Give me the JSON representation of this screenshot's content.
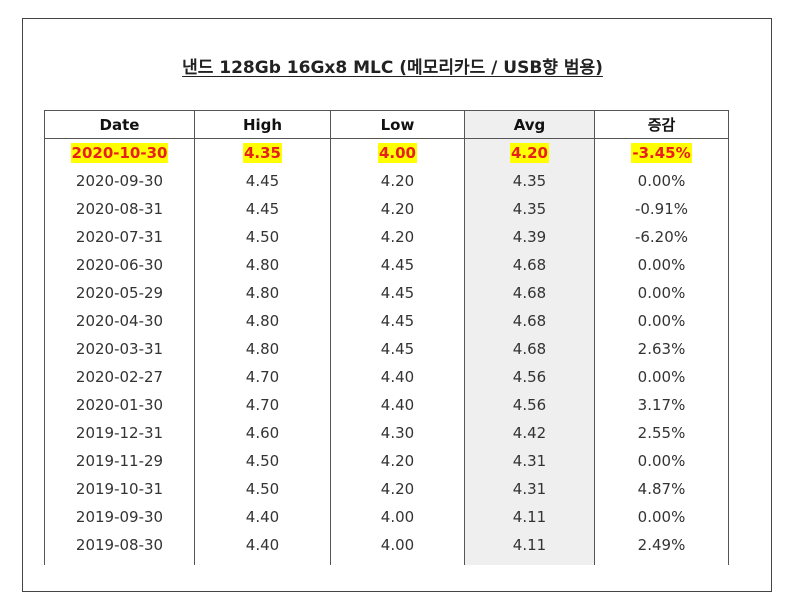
{
  "title": "낸드 128Gb 16Gx8 MLC (메모리카드 / USB향 범용)",
  "columns": [
    "Date",
    "High",
    "Low",
    "Avg",
    "증감"
  ],
  "rows": [
    [
      "2020-10-30",
      "4.35",
      "4.00",
      "4.20",
      "-3.45%"
    ],
    [
      "2020-09-30",
      "4.45",
      "4.20",
      "4.35",
      "0.00%"
    ],
    [
      "2020-08-31",
      "4.45",
      "4.20",
      "4.35",
      "-0.91%"
    ],
    [
      "2020-07-31",
      "4.50",
      "4.20",
      "4.39",
      "-6.20%"
    ],
    [
      "2020-06-30",
      "4.80",
      "4.45",
      "4.68",
      "0.00%"
    ],
    [
      "2020-05-29",
      "4.80",
      "4.45",
      "4.68",
      "0.00%"
    ],
    [
      "2020-04-30",
      "4.80",
      "4.45",
      "4.68",
      "0.00%"
    ],
    [
      "2020-03-31",
      "4.80",
      "4.45",
      "4.68",
      "2.63%"
    ],
    [
      "2020-02-27",
      "4.70",
      "4.40",
      "4.56",
      "0.00%"
    ],
    [
      "2020-01-30",
      "4.70",
      "4.40",
      "4.56",
      "3.17%"
    ],
    [
      "2019-12-31",
      "4.60",
      "4.30",
      "4.42",
      "2.55%"
    ],
    [
      "2019-11-29",
      "4.50",
      "4.20",
      "4.31",
      "0.00%"
    ],
    [
      "2019-10-31",
      "4.50",
      "4.20",
      "4.31",
      "4.87%"
    ],
    [
      "2019-09-30",
      "4.40",
      "4.00",
      "4.11",
      "0.00%"
    ],
    [
      "2019-08-30",
      "4.40",
      "4.00",
      "4.11",
      "2.49%"
    ]
  ],
  "highlight": {
    "background": "#ffff00",
    "text": "#e8201c"
  }
}
